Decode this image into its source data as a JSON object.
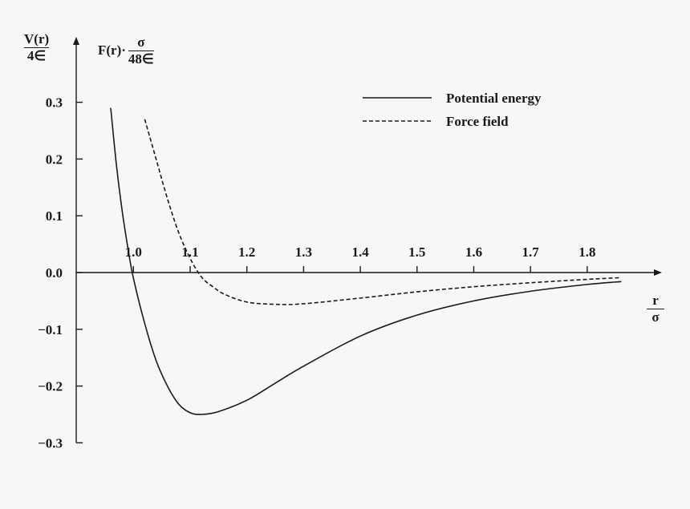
{
  "chart_data": {
    "type": "line",
    "title": "",
    "ylabel": {
      "numerator": "V(r)",
      "denominator": "4∈"
    },
    "ylabel2": {
      "prefix": "F(r)·",
      "numerator": "σ",
      "denominator": "48∈"
    },
    "xlabel": {
      "numerator": "r",
      "denominator": "σ"
    },
    "xlim": [
      0.96,
      1.86
    ],
    "ylim": [
      -0.3,
      0.3
    ],
    "x_ticks": [
      1.0,
      1.1,
      1.2,
      1.3,
      1.4,
      1.5,
      1.6,
      1.7,
      1.8
    ],
    "x_tick_labels": [
      "1.0",
      "1.1",
      "1.2",
      "1.3",
      "1.4",
      "1.5",
      "1.6",
      "1.7",
      "1.8"
    ],
    "y_ticks": [
      0.3,
      0.2,
      0.1,
      0.0,
      -0.1,
      -0.2,
      -0.3
    ],
    "y_tick_labels": [
      "0.3",
      "0.2",
      "0.1",
      "0.0",
      "−0.1",
      "−0.2",
      "−0.3"
    ],
    "legend_position": "top-right",
    "grid": false,
    "series": [
      {
        "name": "Potential energy",
        "style": "solid",
        "color": "#1a1a1a",
        "x": [
          0.96,
          0.97,
          0.98,
          0.99,
          1.0,
          1.02,
          1.04,
          1.06,
          1.08,
          1.1,
          1.12,
          1.15,
          1.2,
          1.25,
          1.3,
          1.4,
          1.5,
          1.6,
          1.7,
          1.8,
          1.86
        ],
        "y": [
          0.29,
          0.19,
          0.11,
          0.045,
          -0.01,
          -0.09,
          -0.155,
          -0.2,
          -0.232,
          -0.247,
          -0.25,
          -0.245,
          -0.225,
          -0.195,
          -0.165,
          -0.112,
          -0.075,
          -0.05,
          -0.033,
          -0.021,
          -0.016
        ]
      },
      {
        "name": "Force field",
        "style": "dashed",
        "color": "#1a1a1a",
        "x": [
          1.02,
          1.04,
          1.06,
          1.08,
          1.1,
          1.12,
          1.14,
          1.16,
          1.2,
          1.25,
          1.3,
          1.4,
          1.5,
          1.6,
          1.7,
          1.8,
          1.86
        ],
        "y": [
          0.27,
          0.2,
          0.13,
          0.07,
          0.025,
          -0.008,
          -0.025,
          -0.038,
          -0.052,
          -0.056,
          -0.055,
          -0.045,
          -0.034,
          -0.025,
          -0.018,
          -0.012,
          -0.009
        ]
      }
    ]
  }
}
